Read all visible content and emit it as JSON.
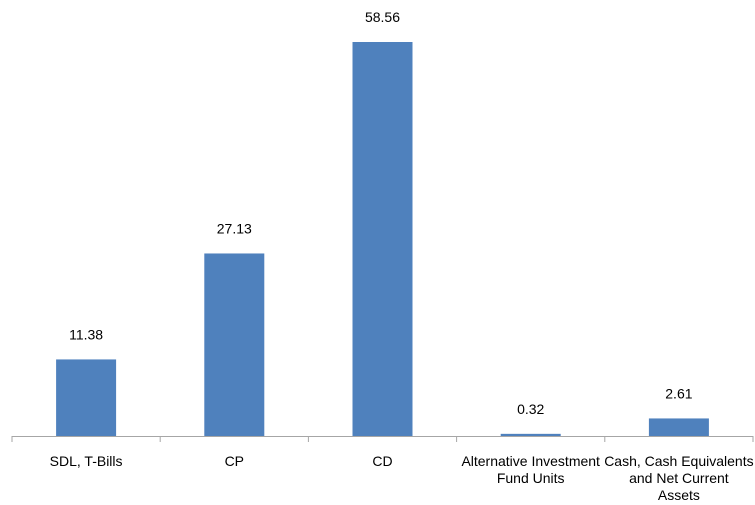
{
  "chart_data": {
    "type": "bar",
    "title": "",
    "xlabel": "",
    "ylabel": "",
    "categories": [
      [
        "SDL, T-Bills"
      ],
      [
        "CP"
      ],
      [
        "CD"
      ],
      [
        "Alternative Investment",
        "Fund Units"
      ],
      [
        "Cash, Cash Equivalents",
        "and Net Current",
        "Assets"
      ]
    ],
    "values": [
      11.38,
      27.13,
      58.56,
      0.32,
      2.61
    ],
    "value_labels": [
      "11.38",
      "27.13",
      "58.56",
      "0.32",
      "2.61"
    ],
    "ylim": [
      0,
      58.56
    ],
    "grid": false,
    "legend": "none",
    "bar_color": "#4f81bd",
    "axis_color": "#a6a6a6",
    "text_color": "#000000"
  }
}
